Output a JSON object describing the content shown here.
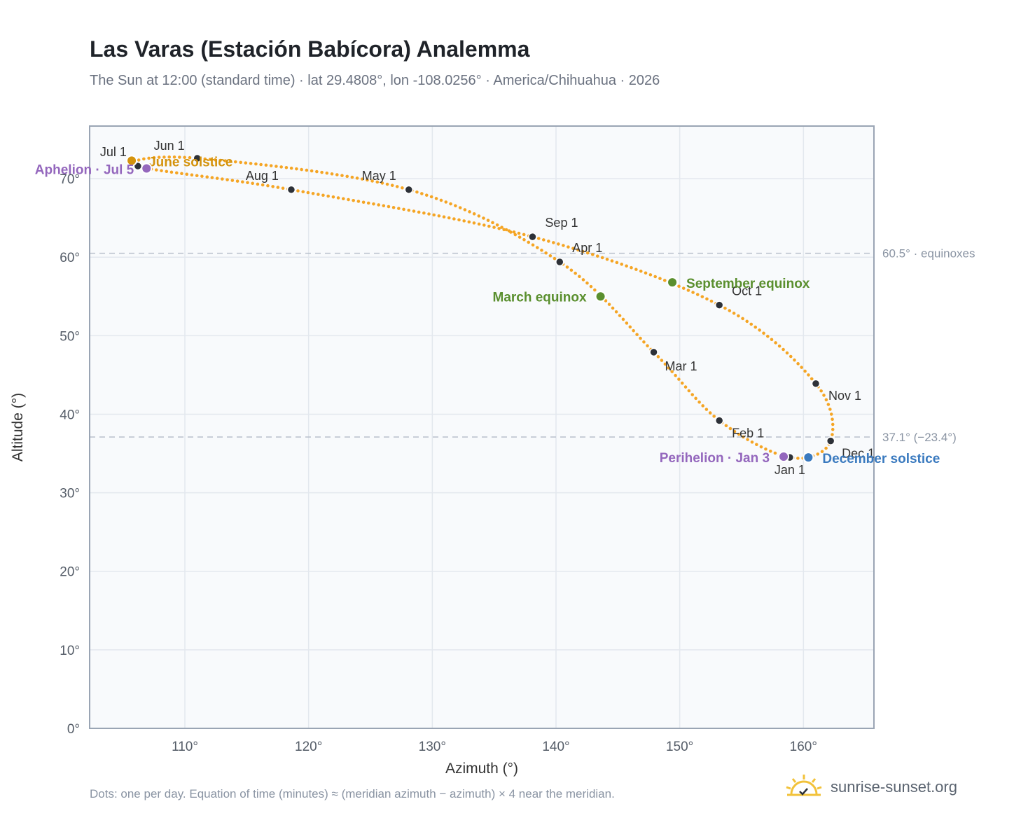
{
  "header": {
    "title": "Las Varas (Estación Babícora) Analemma",
    "subtitle": "The Sun at 12:00 (standard time) · lat 29.4808°, lon -108.0256° · America/Chihuahua · 2026"
  },
  "footer": {
    "note": "Dots: one per day. Equation of time (minutes) ≈ (meridian azimuth − azimuth) × 4 near the meridian.",
    "brand": "sunrise-sunset.org",
    "brand_icon": "sun-logo-icon"
  },
  "colors": {
    "curve": "#f5a524",
    "month_dot": "#2d3138",
    "equinox": "#5a8f2e",
    "june_solstice": "#d4930d",
    "december_solstice": "#3a7abf",
    "apsis": "#9467bd",
    "plot_bg": "#f8fafc",
    "grid": "#e3e8ee",
    "frame": "#9aa5b4",
    "ref_line": "#b8c0cc"
  },
  "chart_data": {
    "type": "scatter",
    "xlabel": "Azimuth (°)",
    "ylabel": "Altitude (°)",
    "xlim": [
      102.3,
      165.7
    ],
    "ylim": [
      0,
      76.7
    ],
    "xticks": [
      110,
      120,
      130,
      140,
      150,
      160
    ],
    "xtick_labels": [
      "110°",
      "120°",
      "130°",
      "140°",
      "150°",
      "160°"
    ],
    "yticks": [
      0,
      10,
      20,
      30,
      40,
      50,
      60,
      70
    ],
    "ytick_labels": [
      "0°",
      "10°",
      "20°",
      "30°",
      "40°",
      "50°",
      "60°",
      "70°"
    ],
    "grid": true,
    "reference_lines": [
      {
        "altitude": 60.5,
        "label": "60.5° · equinoxes"
      },
      {
        "altitude": 37.1,
        "label": "37.1° (−23.4°)"
      }
    ],
    "month_markers": [
      {
        "label": "Jan 1",
        "az": 158.9,
        "alt": 34.5
      },
      {
        "label": "Feb 1",
        "az": 153.2,
        "alt": 39.2
      },
      {
        "label": "Mar 1",
        "az": 147.9,
        "alt": 47.9
      },
      {
        "label": "Apr 1",
        "az": 140.3,
        "alt": 59.4
      },
      {
        "label": "May 1",
        "az": 128.1,
        "alt": 68.6
      },
      {
        "label": "Jun 1",
        "az": 111.0,
        "alt": 72.6
      },
      {
        "label": "Jul 1",
        "az": 106.2,
        "alt": 71.6
      },
      {
        "label": "Aug 1",
        "az": 118.6,
        "alt": 68.6
      },
      {
        "label": "Sep 1",
        "az": 138.1,
        "alt": 62.6
      },
      {
        "label": "Oct 1",
        "az": 153.2,
        "alt": 53.9
      },
      {
        "label": "Nov 1",
        "az": 161.0,
        "alt": 43.9
      },
      {
        "label": "Dec 1",
        "az": 162.2,
        "alt": 36.6
      }
    ],
    "events": [
      {
        "label": "March equinox",
        "az": 143.6,
        "alt": 55.0,
        "kind": "equinox"
      },
      {
        "label": "September equinox",
        "az": 149.4,
        "alt": 56.8,
        "kind": "equinox"
      },
      {
        "label": "June solstice",
        "az": 105.7,
        "alt": 72.3,
        "kind": "june_solstice"
      },
      {
        "label": "December solstice",
        "az": 160.4,
        "alt": 34.5,
        "kind": "december_solstice"
      },
      {
        "label": "Perihelion · Jan 3",
        "az": 158.4,
        "alt": 34.6,
        "kind": "apsis"
      },
      {
        "label": "Aphelion · Jul 5",
        "az": 106.9,
        "alt": 71.3,
        "kind": "apsis"
      }
    ]
  }
}
